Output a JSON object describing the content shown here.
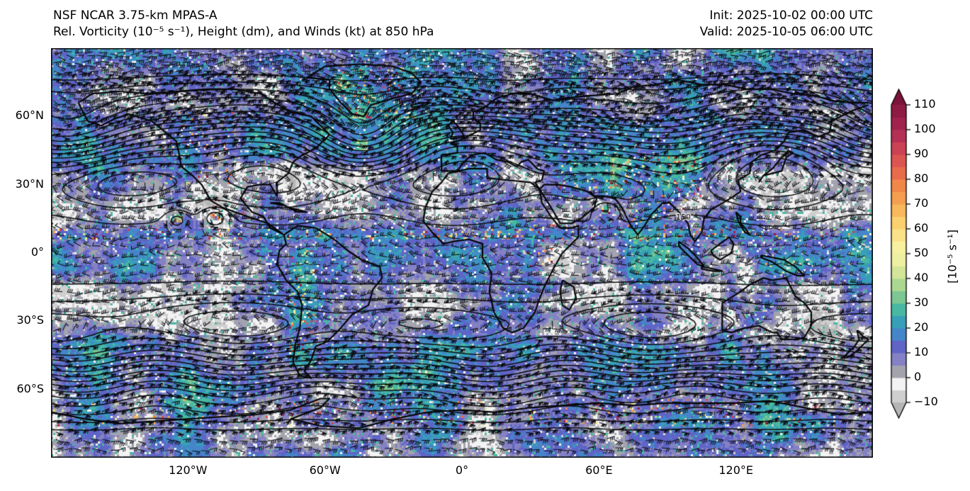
{
  "header": {
    "model_title": "NSF NCAR 3.75-km MPAS-A",
    "fields_title": "Rel. Vorticity (10⁻⁵ s⁻¹), Height (dm), and Winds (kt) at 850 hPa",
    "init_label": "Init: 2025-10-02 00:00 UTC",
    "valid_label": "Valid: 2025-10-05 06:00 UTC"
  },
  "colorbar": {
    "unit_label": "[10⁻⁵ s⁻¹]",
    "vmin": -10,
    "vmax": 110,
    "segment_step": 5,
    "tick_step": 10,
    "tick_labels": [
      "110",
      "100",
      "90",
      "80",
      "70",
      "60",
      "50",
      "40",
      "30",
      "20",
      "10",
      "0",
      "−10"
    ],
    "colors_low_to_high": [
      "#cfcfcf",
      "#f3f3f3",
      "#a3a3ad",
      "#8481c4",
      "#5f64c6",
      "#4585c9",
      "#37a0b8",
      "#49b8a2",
      "#7cc794",
      "#abd891",
      "#d3e598",
      "#edefa1",
      "#f7f09e",
      "#fbe289",
      "#fbd06f",
      "#f9b75c",
      "#f59e51",
      "#f08749",
      "#e86c4b",
      "#dd5550",
      "#cb4156",
      "#b43054",
      "#a0234d",
      "#8e1b44"
    ],
    "under_color": "#b5b5b5",
    "over_color": "#7c1339"
  },
  "axes": {
    "lon_ticks": [
      {
        "label": "120°W",
        "deg": -120
      },
      {
        "label": "60°W",
        "deg": -60
      },
      {
        "label": "0°",
        "deg": 0
      },
      {
        "label": "60°E",
        "deg": 60
      },
      {
        "label": "120°E",
        "deg": 120
      }
    ],
    "lat_ticks": [
      {
        "label": "60°N",
        "deg": 60
      },
      {
        "label": "30°N",
        "deg": 30
      },
      {
        "label": "0°",
        "deg": 0
      },
      {
        "label": "30°S",
        "deg": -30
      },
      {
        "label": "60°S",
        "deg": -60
      }
    ]
  },
  "chart_data": {
    "type": "heatmap",
    "title": "NSF NCAR 3.75-km MPAS-A — Rel. Vorticity (10⁻⁵ s⁻¹), Height (dm), and Winds (kt) at 850 hPa",
    "init_time": "2025-10-02 00:00 UTC",
    "valid_time": "2025-10-05 06:00 UTC",
    "level_hPa": 850,
    "projection": "global equirectangular, lon −180…180, lat −90…90",
    "grid": false,
    "legend_position": "right colorbar with over/under arrows",
    "shaded_field": {
      "name": "relative vorticity",
      "units": "10⁻⁵ s⁻¹",
      "range": [
        -10,
        110
      ],
      "colorbar_ticks": [
        110,
        100,
        90,
        80,
        70,
        60,
        50,
        40,
        30,
        20,
        10,
        0,
        -10
      ]
    },
    "contour_field": {
      "name": "geopotential height",
      "units": "dm",
      "visible_contour_label": "150",
      "approx_level_step_dm": 3
    },
    "wind_field": {
      "name": "wind",
      "units": "kt",
      "glyph": "barbs"
    },
    "lon_tick_labels": [
      "120°W",
      "60°W",
      "0°",
      "60°E",
      "120°E"
    ],
    "lat_tick_labels": [
      "60°N",
      "30°N",
      "0°",
      "30°S",
      "60°S"
    ],
    "notable_features": [
      {
        "kind": "anticyclone (closed height contours)",
        "basin": "South Pacific",
        "lon": -105,
        "lat": -31
      },
      {
        "kind": "anticyclone (closed height contours)",
        "basin": "South Atlantic",
        "lon": -22,
        "lat": -32
      },
      {
        "kind": "anticyclone (closed height contours)",
        "basin": "South Indian Ocean",
        "lon": 78,
        "lat": -32
      },
      {
        "kind": "anticyclone (closed height contours)",
        "basin": "Tasman Sea",
        "lon": 168,
        "lat": -35
      },
      {
        "kind": "cyclone (spiral height contours)",
        "basin": "North Atlantic",
        "lon": -44,
        "lat": 48
      },
      {
        "kind": "cyclone",
        "basin": "North Pacific / Aleutian",
        "lon": -172,
        "lat": 51
      },
      {
        "kind": "tropical cyclone (vorticity eye)",
        "basin": "East Pacific",
        "lon": -125,
        "lat": 15
      },
      {
        "kind": "tropical cyclone (vorticity eye)",
        "basin": "East Pacific",
        "lon": -108,
        "lat": 16
      },
      {
        "kind": "tropical cyclone (vorticity eye)",
        "basin": "Arabian Sea",
        "lon": 63,
        "lat": 19
      },
      {
        "kind": "high-vorticity ITCZ strip",
        "basin": "tropics",
        "lon": 0,
        "lat": 8
      },
      {
        "kind": "dense zonal height-contour band (storm track)",
        "basin": "Southern Ocean",
        "lon": 0,
        "lat": -50
      }
    ]
  },
  "render": {
    "seed": 7,
    "contour_levels": {
      "min": 117,
      "max": 162,
      "step": 3
    },
    "pressure_features": [
      [
        -105,
        -31,
        6.5,
        30,
        8
      ],
      [
        -22,
        -32,
        5.5,
        20,
        7
      ],
      [
        78,
        -32,
        6.5,
        26,
        8
      ],
      [
        168,
        -35,
        4.5,
        16,
        6
      ],
      [
        -150,
        32,
        3,
        24,
        7
      ],
      [
        -38,
        31,
        3,
        20,
        6
      ],
      [
        -44,
        49,
        -8,
        13,
        8
      ],
      [
        -172,
        51,
        -7,
        19,
        8
      ],
      [
        15,
        67,
        -5,
        18,
        7
      ],
      [
        140,
        57,
        -4,
        13,
        7
      ],
      [
        -108,
        16,
        -5,
        4,
        3
      ],
      [
        -125,
        15,
        -4,
        3.5,
        2.8
      ],
      [
        63,
        19,
        -5,
        4,
        3
      ],
      [
        95,
        -58,
        -4,
        16,
        6
      ],
      [
        -60,
        -60,
        -3,
        14,
        6
      ]
    ],
    "contour_label": {
      "text": "150",
      "lon": 97,
      "lat": 15.6
    },
    "barbs": {
      "spacing": 13,
      "length": 10.5
    },
    "hot_zones": [
      [
        -130,
        -100,
        30,
        62,
        6,
        0.05
      ],
      [
        -76,
        -64,
        -50,
        2,
        8,
        0.1
      ],
      [
        65,
        105,
        25,
        42,
        7,
        0.08
      ],
      [
        -55,
        -20,
        59,
        82,
        7,
        0.08
      ],
      [
        28,
        42,
        -8,
        12,
        4,
        0.05
      ],
      [
        130,
        150,
        -9,
        -2,
        5,
        0.06
      ],
      [
        -180,
        180,
        -76,
        -64,
        3,
        0.05
      ],
      [
        -108,
        -94,
        14,
        24,
        5,
        0.05
      ],
      [
        40,
        75,
        25,
        40,
        4,
        0.04
      ],
      [
        -180,
        180,
        6,
        11,
        6,
        0.09
      ],
      [
        -127,
        -122,
        13,
        17,
        22,
        0.3
      ],
      [
        -110,
        -106,
        14,
        18,
        22,
        0.3
      ],
      [
        61,
        65,
        17,
        21,
        20,
        0.25
      ],
      [
        -47,
        -41,
        45,
        50,
        14,
        0.18
      ],
      [
        70,
        100,
        5,
        25,
        4,
        0.05
      ]
    ],
    "coastlines": [
      [
        -168,
        66,
        -162,
        70,
        -150,
        71,
        -138,
        70,
        -125,
        71,
        -112,
        72,
        -100,
        72,
        -88,
        70,
        -82,
        66,
        -75,
        62,
        -66,
        60,
        -58,
        52,
        -64,
        46,
        -70,
        43,
        -74,
        40,
        -76,
        35,
        -81,
        31,
        -81,
        25,
        -84,
        30,
        -89,
        30,
        -94,
        29,
        -97,
        24,
        -92,
        18,
        -87,
        16,
        -84,
        11,
        -80,
        9,
        -78,
        8,
        -85,
        13,
        -94,
        16,
        -105,
        20,
        -110,
        23,
        -114,
        30,
        -118,
        34,
        -123,
        38,
        -124,
        44,
        -125,
        49,
        -131,
        54,
        -136,
        58,
        -146,
        61,
        -152,
        59,
        -158,
        56,
        -164,
        58,
        -168,
        66
      ],
      [
        -78,
        8,
        -72,
        12,
        -64,
        11,
        -56,
        6,
        -50,
        1,
        -44,
        -3,
        -36,
        -6,
        -35,
        -11,
        -39,
        -16,
        -41,
        -23,
        -48,
        -27,
        -54,
        -34,
        -59,
        -39,
        -64,
        -41,
        -66,
        -47,
        -69,
        -52,
        -66,
        -55,
        -71,
        -54,
        -74,
        -48,
        -73,
        -40,
        -71,
        -33,
        -70,
        -23,
        -72,
        -17,
        -77,
        -12,
        -81,
        -5,
        -80,
        1,
        -77,
        4,
        -78,
        8
      ],
      [
        -6,
        35,
        3,
        37,
        11,
        37,
        11,
        33,
        20,
        32,
        30,
        31,
        34,
        28,
        35,
        22,
        39,
        16,
        43,
        11,
        48,
        11,
        51,
        12,
        51,
        7,
        44,
        0,
        40,
        -7,
        36,
        -15,
        34,
        -20,
        32,
        -26,
        27,
        -33,
        22,
        -35,
        18,
        -33,
        14,
        -26,
        12,
        -17,
        13,
        -9,
        9,
        -2,
        9,
        4,
        3,
        6,
        -4,
        5,
        -8,
        4,
        -13,
        9,
        -17,
        14,
        -16,
        20,
        -13,
        27,
        -9,
        31,
        -6,
        35
      ],
      [
        -9,
        36,
        -2,
        36,
        0,
        39,
        4,
        43,
        10,
        44,
        15,
        41,
        20,
        40,
        24,
        38,
        26,
        40,
        29,
        41,
        33,
        37,
        36,
        36,
        35,
        32,
        32,
        31,
        34,
        28
      ],
      [
        34,
        28,
        39,
        20,
        43,
        13,
        48,
        13,
        52,
        15,
        58,
        20,
        59,
        24,
        55,
        27,
        48,
        29,
        42,
        30,
        36,
        30,
        34,
        28
      ],
      [
        -9,
        36,
        -9,
        43,
        -2,
        44,
        -2,
        47,
        -5,
        48,
        0,
        50,
        4,
        52,
        8,
        54,
        8,
        57,
        5,
        59,
        5,
        62,
        10,
        64,
        15,
        68,
        22,
        70,
        30,
        70,
        40,
        67,
        45,
        68,
        55,
        69,
        68,
        70,
        75,
        73,
        85,
        74,
        95,
        76,
        105,
        74,
        115,
        74,
        125,
        72,
        135,
        72,
        145,
        70,
        155,
        69,
        162,
        67,
        170,
        66,
        178,
        66
      ],
      [
        178,
        65,
        172,
        63,
        166,
        60,
        162,
        58,
        161,
        53,
        156,
        51,
        150,
        54,
        143,
        53,
        141,
        49,
        137,
        45,
        131,
        43,
        127,
        40,
        126,
        35,
        121,
        32,
        122,
        27,
        116,
        23,
        109,
        19,
        106,
        15,
        105,
        9,
        102,
        5,
        100,
        8,
        99,
        13,
        95,
        18,
        91,
        22,
        88,
        22,
        86,
        20,
        83,
        17,
        80,
        12,
        77,
        8,
        74,
        12,
        70,
        20,
        67,
        24,
        62,
        25,
        58,
        25,
        56,
        27
      ],
      [
        -58,
        76,
        -68,
        77,
        -60,
        82,
        -45,
        83,
        -30,
        82,
        -22,
        79,
        -18,
        75,
        -22,
        70,
        -30,
        68,
        -40,
        65,
        -43,
        60,
        -48,
        61,
        -53,
        66,
        -58,
        72,
        -58,
        76
      ],
      [
        -5,
        50,
        1,
        51,
        0,
        53,
        -2,
        56,
        -4,
        58,
        -6,
        56,
        -4,
        53,
        -5,
        50
      ],
      [
        -22,
        64,
        -16,
        65,
        -14,
        66,
        -18,
        66,
        -22,
        65,
        -22,
        64
      ],
      [
        130,
        31,
        132,
        34,
        136,
        35,
        140,
        36,
        141,
        39,
        142,
        42,
        145,
        44,
        143,
        45,
        140,
        42,
        136,
        37,
        132,
        34,
        130,
        31
      ],
      [
        44,
        -12,
        49,
        -15,
        50,
        -20,
        47,
        -25,
        44,
        -23,
        43,
        -17,
        44,
        -12
      ],
      [
        114,
        -22,
        114,
        -34,
        118,
        -35,
        124,
        -33,
        130,
        -32,
        136,
        -35,
        138,
        -35,
        140,
        -38,
        147,
        -38,
        150,
        -37,
        153,
        -32,
        153,
        -26,
        150,
        -22,
        146,
        -19,
        142,
        -11,
        136,
        -12,
        132,
        -11,
        126,
        -14,
        122,
        -17,
        114,
        -22
      ],
      [
        173,
        -34,
        176,
        -37,
        178,
        -38,
        175,
        -41,
        173,
        -43,
        169,
        -46,
        167,
        -46,
        170,
        -43,
        172,
        -41,
        174,
        -38,
        173,
        -34
      ],
      [
        109,
        1,
        113,
        4,
        117,
        7,
        119,
        4,
        118,
        0,
        113,
        -3,
        110,
        -1,
        109,
        1
      ],
      [
        95,
        5,
        99,
        2,
        103,
        -2,
        106,
        -6,
        103,
        -5,
        98,
        0,
        95,
        3,
        95,
        5
      ],
      [
        105,
        -6,
        110,
        -7,
        114,
        -8,
        110,
        -8,
        105,
        -7,
        105,
        -6
      ],
      [
        131,
        -1,
        136,
        -2,
        141,
        -3,
        146,
        -6,
        150,
        -10,
        147,
        -10,
        142,
        -8,
        136,
        -4,
        131,
        -2,
        131,
        -1
      ],
      [
        120,
        18,
        122,
        16,
        122,
        13,
        124,
        11,
        126,
        8,
        124,
        9,
        121,
        14,
        120,
        18
      ],
      [
        -84,
        22,
        -80,
        22,
        -76,
        20,
        -72,
        19,
        -68,
        18,
        -72,
        18,
        -78,
        21,
        -84,
        22
      ],
      [
        -180,
        -70,
        -165,
        -73,
        -150,
        -75,
        -135,
        -74,
        -120,
        -73,
        -105,
        -72,
        -90,
        -71,
        -75,
        -69,
        -62,
        -64,
        -58,
        -64,
        -62,
        -68,
        -75,
        -73,
        -62,
        -76,
        -45,
        -77,
        -30,
        -73,
        -15,
        -70,
        0,
        -69,
        15,
        -70,
        30,
        -68,
        45,
        -67,
        60,
        -66,
        75,
        -67,
        90,
        -66,
        105,
        -66,
        120,
        -66,
        135,
        -65,
        150,
        -68,
        165,
        -71,
        180,
        -70
      ]
    ]
  }
}
